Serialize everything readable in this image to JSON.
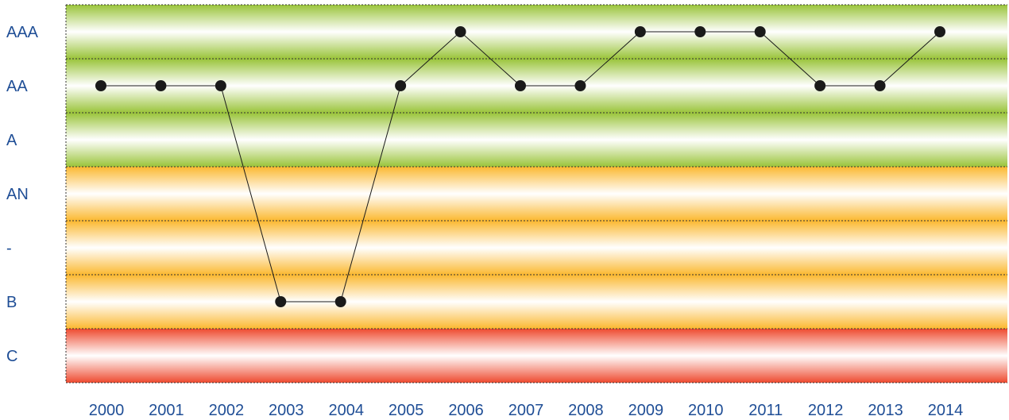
{
  "chart_data": {
    "type": "line",
    "title": "",
    "xlabel": "",
    "ylabel": "",
    "x": [
      "2000",
      "2001",
      "2002",
      "2003",
      "2004",
      "2005",
      "2006",
      "2007",
      "2008",
      "2009",
      "2010",
      "2011",
      "2012",
      "2013",
      "2014"
    ],
    "y_categories": [
      "AAA",
      "AA",
      "A",
      "AN",
      "-",
      "B",
      "C"
    ],
    "series": [
      {
        "values": [
          "AA",
          "AA",
          "AA",
          "B",
          "B",
          "AA",
          "AAA",
          "AA",
          "AA",
          "AAA",
          "AAA",
          "AAA",
          "AA",
          "AA",
          "AAA"
        ]
      }
    ],
    "bands": [
      {
        "from": "AAA",
        "to": "A",
        "color": "#9ac43a"
      },
      {
        "from": "AN",
        "to": "B",
        "color": "#fbb830"
      },
      {
        "from": "C",
        "to": "C",
        "color": "#ee4a2f"
      }
    ],
    "grid": true,
    "legend": "none",
    "colors": {
      "line": "#1a1a1a",
      "marker": "#1a1a1a",
      "tick_text": "#1f4e96"
    }
  }
}
